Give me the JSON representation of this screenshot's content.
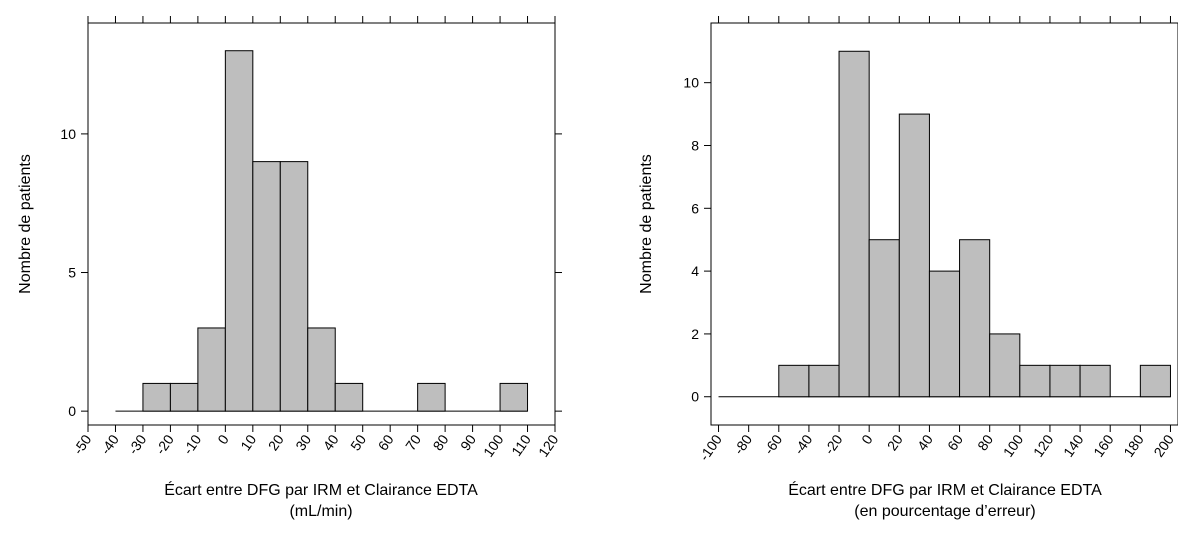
{
  "chart_data": [
    {
      "type": "bar",
      "bin_edges": [
        -40,
        -30,
        -20,
        -10,
        0,
        10,
        20,
        30,
        40,
        50,
        60,
        70,
        80,
        90,
        100,
        110
      ],
      "values": [
        0,
        1,
        1,
        3,
        13,
        9,
        9,
        3,
        1,
        0,
        0,
        1,
        0,
        0,
        1
      ],
      "xlabel": [
        "Écart entre DFG par IRM et Clairance EDTA",
        "(mL/min)"
      ],
      "ylabel": "Nombre de patients",
      "x_ticks": [
        "-50",
        "-40",
        "-30",
        "-20",
        "-10",
        "0",
        "10",
        "20",
        "30",
        "40",
        "50",
        "60",
        "70",
        "80",
        "90",
        "100",
        "110",
        "120"
      ],
      "x_tick_values": [
        -50,
        -40,
        -30,
        -20,
        -10,
        0,
        10,
        20,
        30,
        40,
        50,
        60,
        70,
        80,
        90,
        100,
        110,
        120
      ],
      "y_ticks": [
        "0",
        "5",
        "10"
      ],
      "y_tick_values": [
        0,
        5,
        10
      ],
      "xlim": [
        -50,
        120
      ],
      "ylim": [
        -0.5,
        14
      ],
      "grid": false
    },
    {
      "type": "bar",
      "bin_edges": [
        -100,
        -80,
        -60,
        -40,
        -20,
        0,
        20,
        40,
        60,
        80,
        100,
        120,
        140,
        160,
        180,
        200
      ],
      "values": [
        0,
        0,
        1,
        1,
        11,
        5,
        9,
        4,
        5,
        2,
        1,
        1,
        1,
        0,
        1
      ],
      "xlabel": [
        "Écart entre DFG par IRM et Clairance EDTA",
        "(en pourcentage d’erreur)"
      ],
      "ylabel": "Nombre de patients",
      "x_ticks": [
        "-100",
        "-80",
        "-60",
        "-40",
        "-20",
        "0",
        "20",
        "40",
        "60",
        "80",
        "100",
        "120",
        "140",
        "160",
        "180",
        "200"
      ],
      "x_tick_values": [
        -100,
        -80,
        -60,
        -40,
        -20,
        0,
        20,
        40,
        60,
        80,
        100,
        120,
        140,
        160,
        180,
        200
      ],
      "y_ticks": [
        "0",
        "2",
        "4",
        "6",
        "8",
        "10"
      ],
      "y_tick_values": [
        0,
        2,
        4,
        6,
        8,
        10
      ],
      "xlim": [
        -105,
        205
      ],
      "ylim": [
        -0.9,
        11.9
      ],
      "grid": false
    }
  ]
}
